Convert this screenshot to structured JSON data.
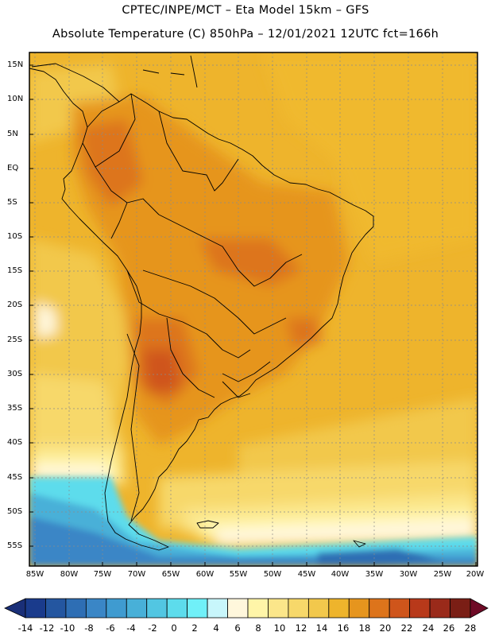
{
  "title": {
    "line1": "CPTEC/INPE/MCT –  Eta Model 15km – GFS",
    "line2": "Absolute Temperature (C) 850hPa – 12/01/2021 12UTC fct=166h"
  },
  "latitude_labels": [
    "15N",
    "10N",
    "5N",
    "EQ",
    "5S",
    "10S",
    "15S",
    "20S",
    "25S",
    "30S",
    "35S",
    "40S",
    "45S",
    "50S",
    "55S"
  ],
  "longitude_labels": [
    "85W",
    "80W",
    "75W",
    "70W",
    "65W",
    "60W",
    "55W",
    "50W",
    "45W",
    "40W",
    "35W",
    "30W",
    "25W",
    "20W"
  ],
  "colorbar": {
    "labels": [
      "-14",
      "-12",
      "-10",
      "-8",
      "-6",
      "-4",
      "-2",
      "0",
      "2",
      "4",
      "6",
      "8",
      "10",
      "12",
      "14",
      "16",
      "18",
      "20",
      "22",
      "24",
      "26",
      "28"
    ],
    "colors": [
      "#1a3b8c",
      "#2456a0",
      "#2e6eb4",
      "#3a86c6",
      "#3f9bd0",
      "#48b0d8",
      "#52c6e2",
      "#5ddcec",
      "#70f0f8",
      "#c8f6fb",
      "#fff7dc",
      "#fff5a8",
      "#fbe68a",
      "#f7d86a",
      "#f2c84c",
      "#eeb42c",
      "#e6951e",
      "#dd741b",
      "#cf551b",
      "#b8391a",
      "#9a2a1a",
      "#7a1e15"
    ]
  }
}
